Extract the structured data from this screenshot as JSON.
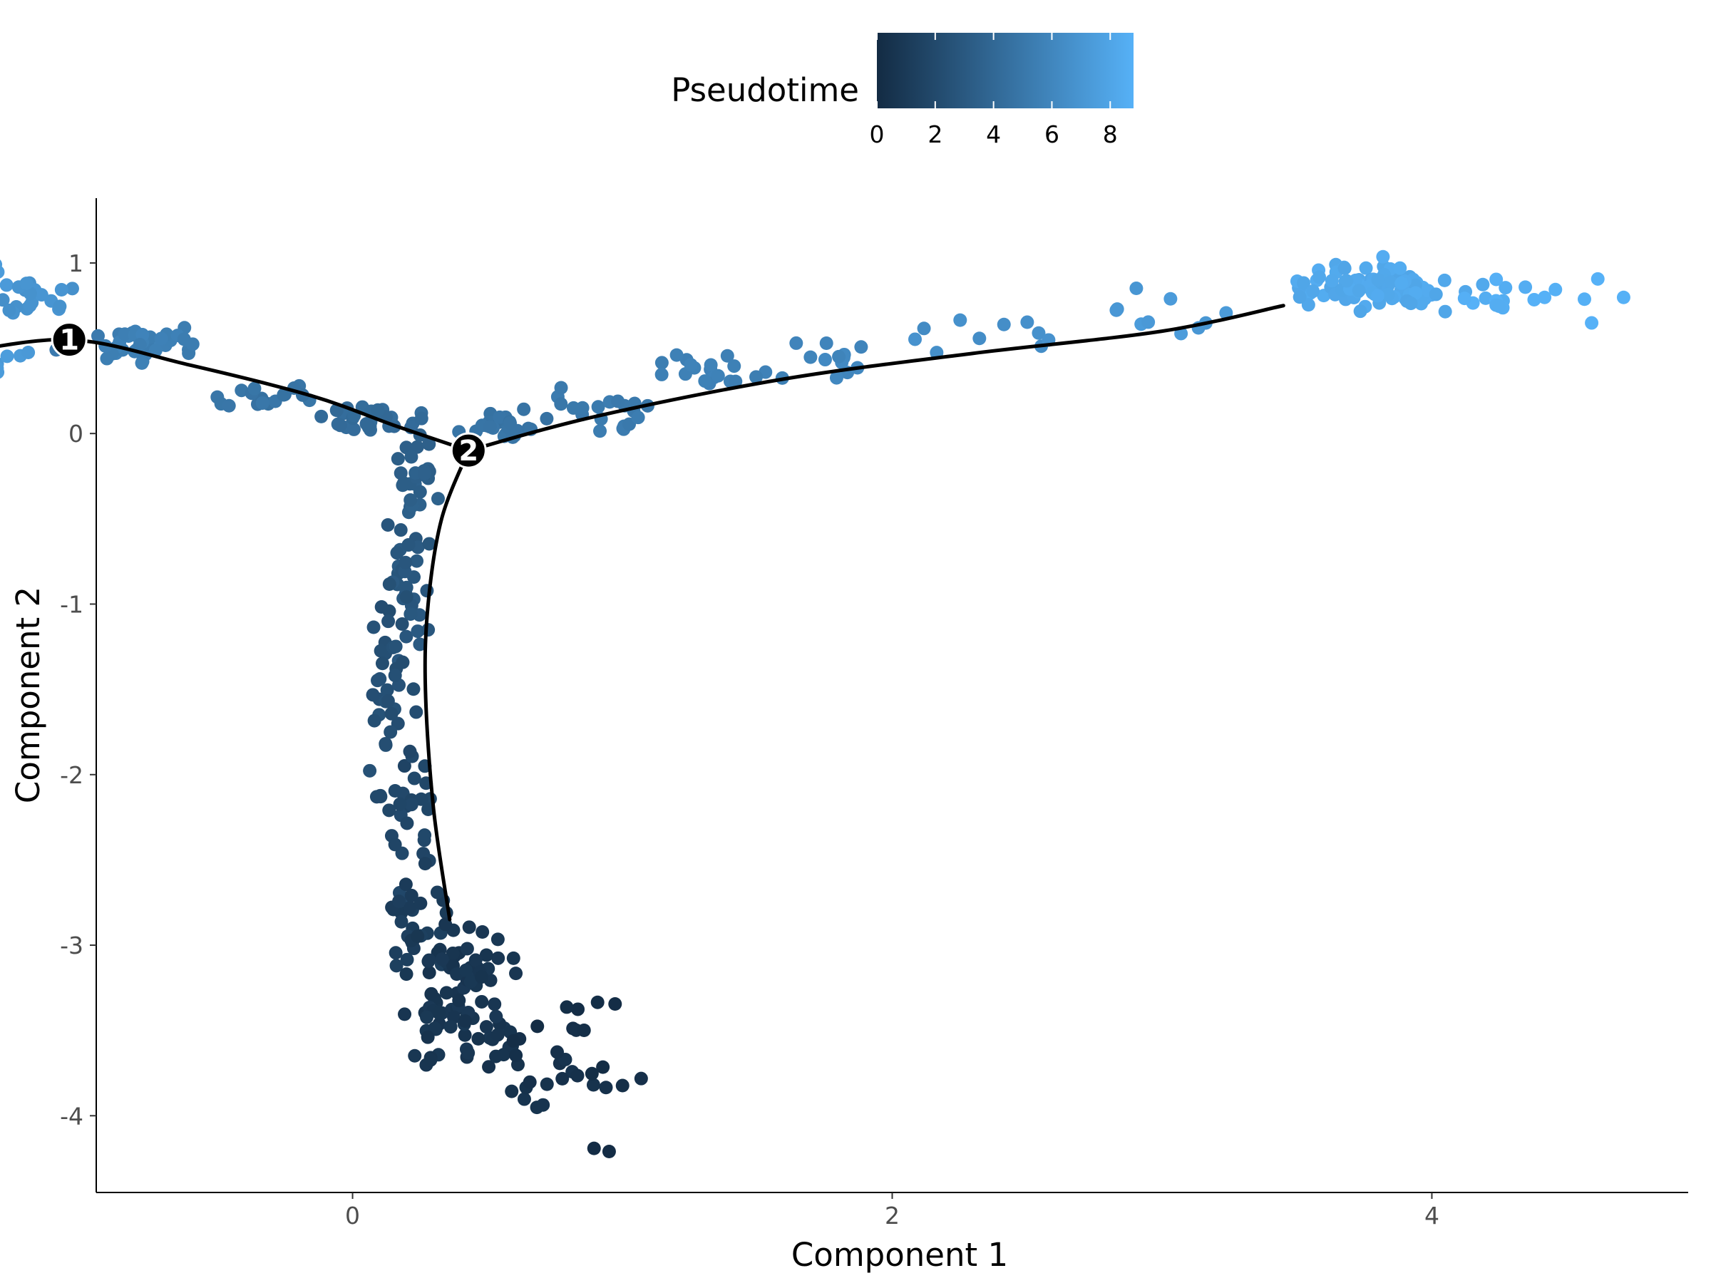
{
  "chart_data": {
    "type": "scatter",
    "xlabel": "Component 1",
    "ylabel": "Component 2",
    "xlim": [
      -0.95,
      4.95
    ],
    "ylim": [
      -4.45,
      1.38
    ],
    "x_ticks": [
      0,
      2,
      4
    ],
    "y_ticks": [
      1,
      0,
      -1,
      -2,
      -3,
      -4
    ],
    "x_tick_labels": [
      "0",
      "2",
      "4"
    ],
    "y_tick_labels": [
      "1",
      "0",
      "-1",
      "-2",
      "-3",
      "-4"
    ],
    "grid": false,
    "legend": {
      "title": "Pseudotime",
      "placement": "top",
      "range": [
        0,
        8.8
      ],
      "ticks": [
        0,
        2,
        4,
        6,
        8
      ],
      "tick_labels": [
        "0",
        "2",
        "4",
        "6",
        "8"
      ],
      "color_low": "#132B43",
      "color_high": "#56B1F7"
    },
    "trajectory": [
      {
        "name": "upper-left",
        "points": [
          [
            -1.5,
            0.46
          ],
          [
            -1.05,
            0.55
          ],
          [
            -0.6,
            0.4
          ],
          [
            -0.15,
            0.22
          ],
          [
            0.15,
            0.05
          ],
          [
            0.43,
            -0.1
          ]
        ]
      },
      {
        "name": "right",
        "points": [
          [
            0.43,
            -0.1
          ],
          [
            0.9,
            0.1
          ],
          [
            1.6,
            0.32
          ],
          [
            2.3,
            0.47
          ],
          [
            3.0,
            0.6
          ],
          [
            3.45,
            0.75
          ]
        ]
      },
      {
        "name": "lower",
        "points": [
          [
            0.43,
            -0.1
          ],
          [
            0.33,
            -0.5
          ],
          [
            0.28,
            -1.0
          ],
          [
            0.27,
            -1.5
          ],
          [
            0.3,
            -2.2
          ],
          [
            0.36,
            -2.85
          ]
        ]
      }
    ],
    "branch_points": [
      {
        "label": "1",
        "x": -1.05,
        "y": 0.55
      },
      {
        "label": "2",
        "x": 0.43,
        "y": -0.1
      }
    ],
    "point_clusters": [
      {
        "cx": -1.45,
        "cy": 0.93,
        "sx": 0.08,
        "sy": 0.06,
        "n": 60,
        "t": [
          7.0,
          7.6
        ]
      },
      {
        "cx": -1.2,
        "cy": 0.78,
        "sx": 0.08,
        "sy": 0.06,
        "n": 20,
        "t": [
          6.5,
          7.0
        ]
      },
      {
        "cx": -1.4,
        "cy": 0.45,
        "sx": 0.08,
        "sy": 0.04,
        "n": 45,
        "t": [
          7.0,
          7.5
        ]
      },
      {
        "cx": -0.75,
        "cy": 0.52,
        "sx": 0.12,
        "sy": 0.05,
        "n": 40,
        "t": [
          5.2,
          5.8
        ]
      },
      {
        "cx": -0.3,
        "cy": 0.22,
        "sx": 0.1,
        "sy": 0.04,
        "n": 20,
        "t": [
          4.5,
          5.0
        ]
      },
      {
        "cx": 0.1,
        "cy": 0.07,
        "sx": 0.1,
        "sy": 0.04,
        "n": 30,
        "t": [
          4.0,
          4.4
        ]
      },
      {
        "cx": 0.25,
        "cy": -0.3,
        "sx": 0.04,
        "sy": 0.12,
        "n": 25,
        "t": [
          3.3,
          3.6
        ]
      },
      {
        "cx": 0.2,
        "cy": -0.9,
        "sx": 0.04,
        "sy": 0.2,
        "n": 30,
        "t": [
          2.7,
          3.1
        ]
      },
      {
        "cx": 0.12,
        "cy": -1.5,
        "sx": 0.05,
        "sy": 0.25,
        "n": 35,
        "t": [
          2.2,
          2.6
        ]
      },
      {
        "cx": 0.2,
        "cy": -2.2,
        "sx": 0.06,
        "sy": 0.25,
        "n": 30,
        "t": [
          1.6,
          2.0
        ]
      },
      {
        "cx": 0.25,
        "cy": -2.85,
        "sx": 0.06,
        "sy": 0.15,
        "n": 25,
        "t": [
          1.0,
          1.4
        ]
      },
      {
        "cx": 0.4,
        "cy": -3.3,
        "sx": 0.1,
        "sy": 0.2,
        "n": 90,
        "t": [
          0.5,
          0.9
        ]
      },
      {
        "cx": 0.65,
        "cy": -3.7,
        "sx": 0.12,
        "sy": 0.1,
        "n": 20,
        "t": [
          0.3,
          0.6
        ]
      },
      {
        "cx": 0.85,
        "cy": -3.5,
        "sx": 0.12,
        "sy": 0.2,
        "n": 15,
        "t": [
          0.1,
          0.4
        ]
      },
      {
        "cx": 0.55,
        "cy": 0.05,
        "sx": 0.08,
        "sy": 0.04,
        "n": 25,
        "t": [
          4.6,
          5.0
        ]
      },
      {
        "cx": 0.95,
        "cy": 0.12,
        "sx": 0.1,
        "sy": 0.08,
        "n": 20,
        "t": [
          5.0,
          5.4
        ]
      },
      {
        "cx": 1.35,
        "cy": 0.35,
        "sx": 0.1,
        "sy": 0.06,
        "n": 20,
        "t": [
          5.4,
          5.8
        ]
      },
      {
        "cx": 1.8,
        "cy": 0.45,
        "sx": 0.12,
        "sy": 0.05,
        "n": 12,
        "t": [
          5.8,
          6.2
        ]
      },
      {
        "cx": 2.4,
        "cy": 0.58,
        "sx": 0.15,
        "sy": 0.05,
        "n": 10,
        "t": [
          6.3,
          6.8
        ]
      },
      {
        "cx": 3.0,
        "cy": 0.7,
        "sx": 0.15,
        "sy": 0.08,
        "n": 10,
        "t": [
          7.0,
          7.5
        ]
      },
      {
        "cx": 3.8,
        "cy": 0.86,
        "sx": 0.14,
        "sy": 0.06,
        "n": 100,
        "t": [
          8.0,
          8.5
        ]
      },
      {
        "cx": 4.2,
        "cy": 0.78,
        "sx": 0.12,
        "sy": 0.06,
        "n": 12,
        "t": [
          8.5,
          8.8
        ]
      },
      {
        "cx": 4.6,
        "cy": 0.85,
        "sx": 0.08,
        "sy": 0.1,
        "n": 6,
        "t": [
          8.7,
          8.8
        ]
      },
      {
        "cx": 0.92,
        "cy": -4.18,
        "sx": 0.02,
        "sy": 0.03,
        "n": 2,
        "t": [
          0.0,
          0.2
        ]
      }
    ]
  }
}
